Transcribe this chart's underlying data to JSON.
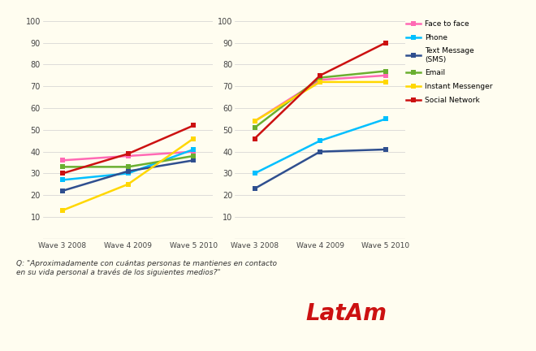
{
  "x_labels": [
    "Wave 3 2008",
    "Wave 4 2009",
    "Wave 5 2010"
  ],
  "left_chart": {
    "Face to face": [
      36,
      38,
      40
    ],
    "Phone": [
      27,
      30,
      41
    ],
    "Text Message (SMS)": [
      22,
      31,
      36
    ],
    "Email": [
      33,
      33,
      38
    ],
    "Instant Messenger": [
      13,
      25,
      46
    ],
    "Social Network": [
      30,
      39,
      52
    ]
  },
  "right_chart": {
    "Face to face": [
      54,
      73,
      75
    ],
    "Phone": [
      30,
      45,
      55
    ],
    "Text Message (SMS)": [
      23,
      40,
      41
    ],
    "Email": [
      51,
      74,
      77
    ],
    "Instant Messenger": [
      54,
      72,
      72
    ],
    "Social Network": [
      46,
      75,
      90
    ]
  },
  "colors": {
    "Face to face": "#FF69B4",
    "Phone": "#00BFFF",
    "Text Message (SMS)": "#2F4F8F",
    "Email": "#6AAF30",
    "Instant Messenger": "#FFD700",
    "Social Network": "#CC1111"
  },
  "background_color": "#FFFDF0",
  "ylim": [
    0,
    100
  ],
  "yticks": [
    10,
    20,
    30,
    40,
    50,
    60,
    70,
    80,
    90,
    100
  ],
  "subtitle": "Q: \"Aproximadamente con cuántas personas te mantienes en contacto\nen su vida personal a través de los siguientes medios?\"",
  "brand": "LatAm"
}
